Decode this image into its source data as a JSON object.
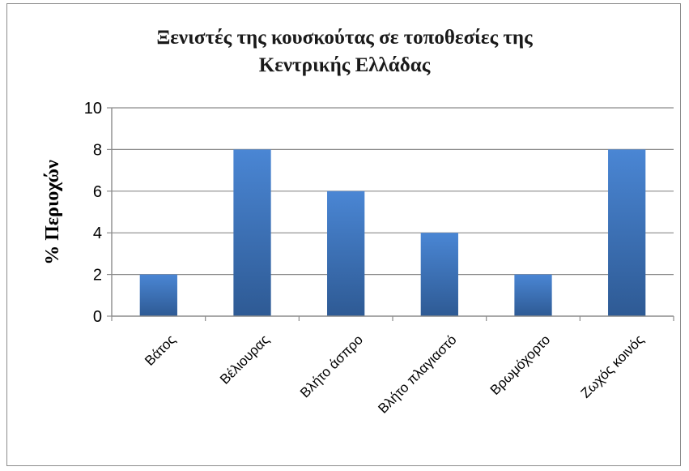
{
  "chart_data": {
    "type": "bar",
    "title_lines": [
      "Ξενιστές της κουσκούτας σε τοποθεσίες της",
      "Κεντρικής Ελλάδας"
    ],
    "ylabel": "% Περιοχών",
    "xlabel": "",
    "categories": [
      "Βάτος",
      "Βέλιουρας",
      "Βλήτο άσπρο",
      "Βλήτο πλαγιαστό",
      "Βρωμόχορτο",
      "Ζωχός κοινός"
    ],
    "values": [
      2,
      8,
      6,
      4,
      2,
      8
    ],
    "ylim": [
      0,
      10
    ],
    "yticks": [
      0,
      2,
      4,
      6,
      8,
      10
    ],
    "grid": true,
    "legend": "none",
    "colors": {
      "bar_light": "#4a86d4",
      "bar_dark": "#2e5a94",
      "grid": "#8c8c8c",
      "axis": "#8c8c8c"
    }
  }
}
